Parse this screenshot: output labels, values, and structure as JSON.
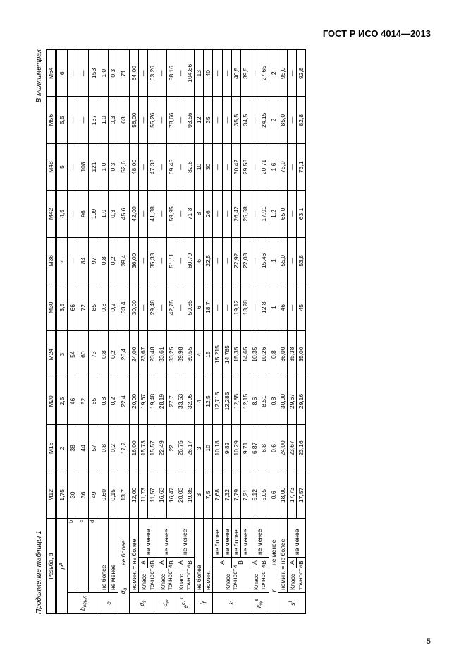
{
  "doc_header": "ГОСТ Р ИСО 4014—2013",
  "table_caption": "Продолжение таблицы 1",
  "units": "В миллиметрах",
  "page_number": "5",
  "col_headers": [
    "M12",
    "M16",
    "M20",
    "M24",
    "M30",
    "M36",
    "M42",
    "M48",
    "M56",
    "M64"
  ],
  "label_thread": "Резьба, d",
  "rows": {
    "P": {
      "lbl": "P",
      "sup": "a",
      "vals": [
        "1,75",
        "2",
        "2,5",
        "3",
        "3,5",
        "4",
        "4,5",
        "5",
        "5,5",
        "6"
      ]
    },
    "b_b": {
      "sup": "b",
      "vals": [
        "30",
        "38",
        "46",
        "54",
        "66",
        "—",
        "—",
        "—",
        "—",
        "—"
      ]
    },
    "b_c": {
      "sup": "c",
      "vals": [
        "36",
        "44",
        "52",
        "60",
        "72",
        "84",
        "96",
        "108",
        "—",
        "—"
      ]
    },
    "b_d": {
      "sup": "d",
      "vals": [
        "49",
        "57",
        "65",
        "73",
        "85",
        "97",
        "109",
        "121",
        "137",
        "153"
      ]
    },
    "b_lbl": "b_ссыл",
    "c_max": {
      "txt": "не более",
      "vals": [
        "0,60",
        "0,8",
        "0,8",
        "0,8",
        "0,8",
        "0,8",
        "1,0",
        "1,0",
        "1,0",
        "1,0"
      ]
    },
    "c_min": {
      "txt": "не менее",
      "vals": [
        "0,15",
        "0,2",
        "0,2",
        "0,2",
        "0,2",
        "0,2",
        "0,3",
        "0,3",
        "0,3",
        "0,3"
      ]
    },
    "c_lbl": "c",
    "da": {
      "lbl": "d_a",
      "txt": "не более",
      "vals": [
        "13,7",
        "17,7",
        "22,4",
        "26,4",
        "33,4",
        "39,4",
        "45,6",
        "52,6",
        "63",
        "71"
      ]
    },
    "ds_nom": {
      "txt": "номин. = не более",
      "vals": [
        "12,00",
        "16,00",
        "20,00",
        "24,00",
        "30,00",
        "36,00",
        "42,00",
        "48,00",
        "56,00",
        "64,00"
      ]
    },
    "ds_A": {
      "vals": [
        "11,73",
        "15,73",
        "19,67",
        "23,67",
        "—",
        "—",
        "—",
        "—",
        "—",
        "—"
      ]
    },
    "ds_B": {
      "vals": [
        "11,57",
        "15,57",
        "19,48",
        "23,48",
        "29,48",
        "35,38",
        "41,38",
        "47,38",
        "55,26",
        "63,26"
      ]
    },
    "ds_lbl": "d_s",
    "ds_kl": "Класс точности",
    "ds_nm": "не менее",
    "dw_A": {
      "vals": [
        "16,63",
        "22,49",
        "28,19",
        "33,61",
        "—",
        "—",
        "—",
        "—",
        "—",
        "—"
      ]
    },
    "dw_B": {
      "vals": [
        "16,47",
        "22",
        "27,7",
        "33,25",
        "42,75",
        "51,11",
        "59,95",
        "69,45",
        "78,66",
        "88,16"
      ]
    },
    "dw_lbl": "d_w",
    "dw_kl": "Класс точности",
    "dw_nm": "не менее",
    "e_A": {
      "vals": [
        "20,03",
        "26,75",
        "33,53",
        "39,98",
        "—",
        "—",
        "—",
        "—",
        "—",
        "—"
      ]
    },
    "e_B": {
      "vals": [
        "19,85",
        "26,17",
        "32,95",
        "39,55",
        "50,85",
        "60,79",
        "71,3",
        "82,6",
        "93,56",
        "104,86"
      ]
    },
    "e_lbl": "e",
    "e_sup": "e, f",
    "e_kl": "Класс точности",
    "e_nm": "не менее",
    "lf_max": {
      "txt": "не более",
      "vals": [
        "3",
        "3",
        "4",
        "4",
        "6",
        "6",
        "8",
        "10",
        "12",
        "13"
      ]
    },
    "lf_nom": {
      "txt": "номин.",
      "vals": [
        "7,5",
        "10",
        "12,5",
        "15",
        "18,7",
        "22,5",
        "26",
        "30",
        "35",
        "40"
      ]
    },
    "lf_lbl": "l_f",
    "k_A_max": {
      "vals": [
        "7,68",
        "10,18",
        "12,715",
        "15,215",
        "—",
        "—",
        "—",
        "—",
        "—",
        "—"
      ]
    },
    "k_A_min": {
      "vals": [
        "7,32",
        "9,82",
        "12,285",
        "14,785",
        "—",
        "—",
        "—",
        "—",
        "—",
        "—"
      ]
    },
    "k_B_max": {
      "vals": [
        "7,79",
        "10,29",
        "12,85",
        "15,35",
        "19,12",
        "22,92",
        "26,42",
        "30,42",
        "35,5",
        "40,5"
      ]
    },
    "k_B_min": {
      "vals": [
        "7,21",
        "9,71",
        "12,15",
        "14,65",
        "18,28",
        "22,08",
        "25,58",
        "29,58",
        "34,5",
        "39,5"
      ]
    },
    "k_lbl": "k",
    "k_kl": "Класс точности",
    "k_nb": "не более",
    "k_nm": "не менее",
    "kw_A": {
      "vals": [
        "5,12",
        "6,87",
        "8,6",
        "10,35",
        "—",
        "—",
        "—",
        "—",
        "—",
        "—"
      ]
    },
    "kw_B": {
      "vals": [
        "5,05",
        "6,8",
        "8,51",
        "10,26",
        "12,8",
        "15,46",
        "17,91",
        "20,71",
        "24,15",
        "27,65"
      ]
    },
    "kw_lbl": "k_w",
    "kw_sup": "e",
    "kw_kl": "Класс точности",
    "kw_nm": "не менее",
    "r": {
      "lbl": "r",
      "txt": "не менее",
      "vals": [
        "0,6",
        "0,6",
        "0,8",
        "0,8",
        "1",
        "1",
        "1,2",
        "1,6",
        "2",
        "2"
      ]
    },
    "s_nom": {
      "txt": "номин. = не более",
      "vals": [
        "18,00",
        "24,00",
        "30,00",
        "36,00",
        "46",
        "55,0",
        "65,0",
        "75,0",
        "85,0",
        "95,0"
      ]
    },
    "s_A": {
      "vals": [
        "17,73",
        "23,67",
        "29,67",
        "35,38",
        "—",
        "—",
        "—",
        "—",
        "—",
        "—"
      ]
    },
    "s_B": {
      "vals": [
        "17,57",
        "23,16",
        "29,16",
        "35,00",
        "45",
        "53,8",
        "63,1",
        "73,1",
        "82,8",
        "92,8"
      ]
    },
    "s_lbl": "s",
    "s_sup": "f",
    "s_kl": "Класс точности",
    "s_nm": "не менее"
  }
}
